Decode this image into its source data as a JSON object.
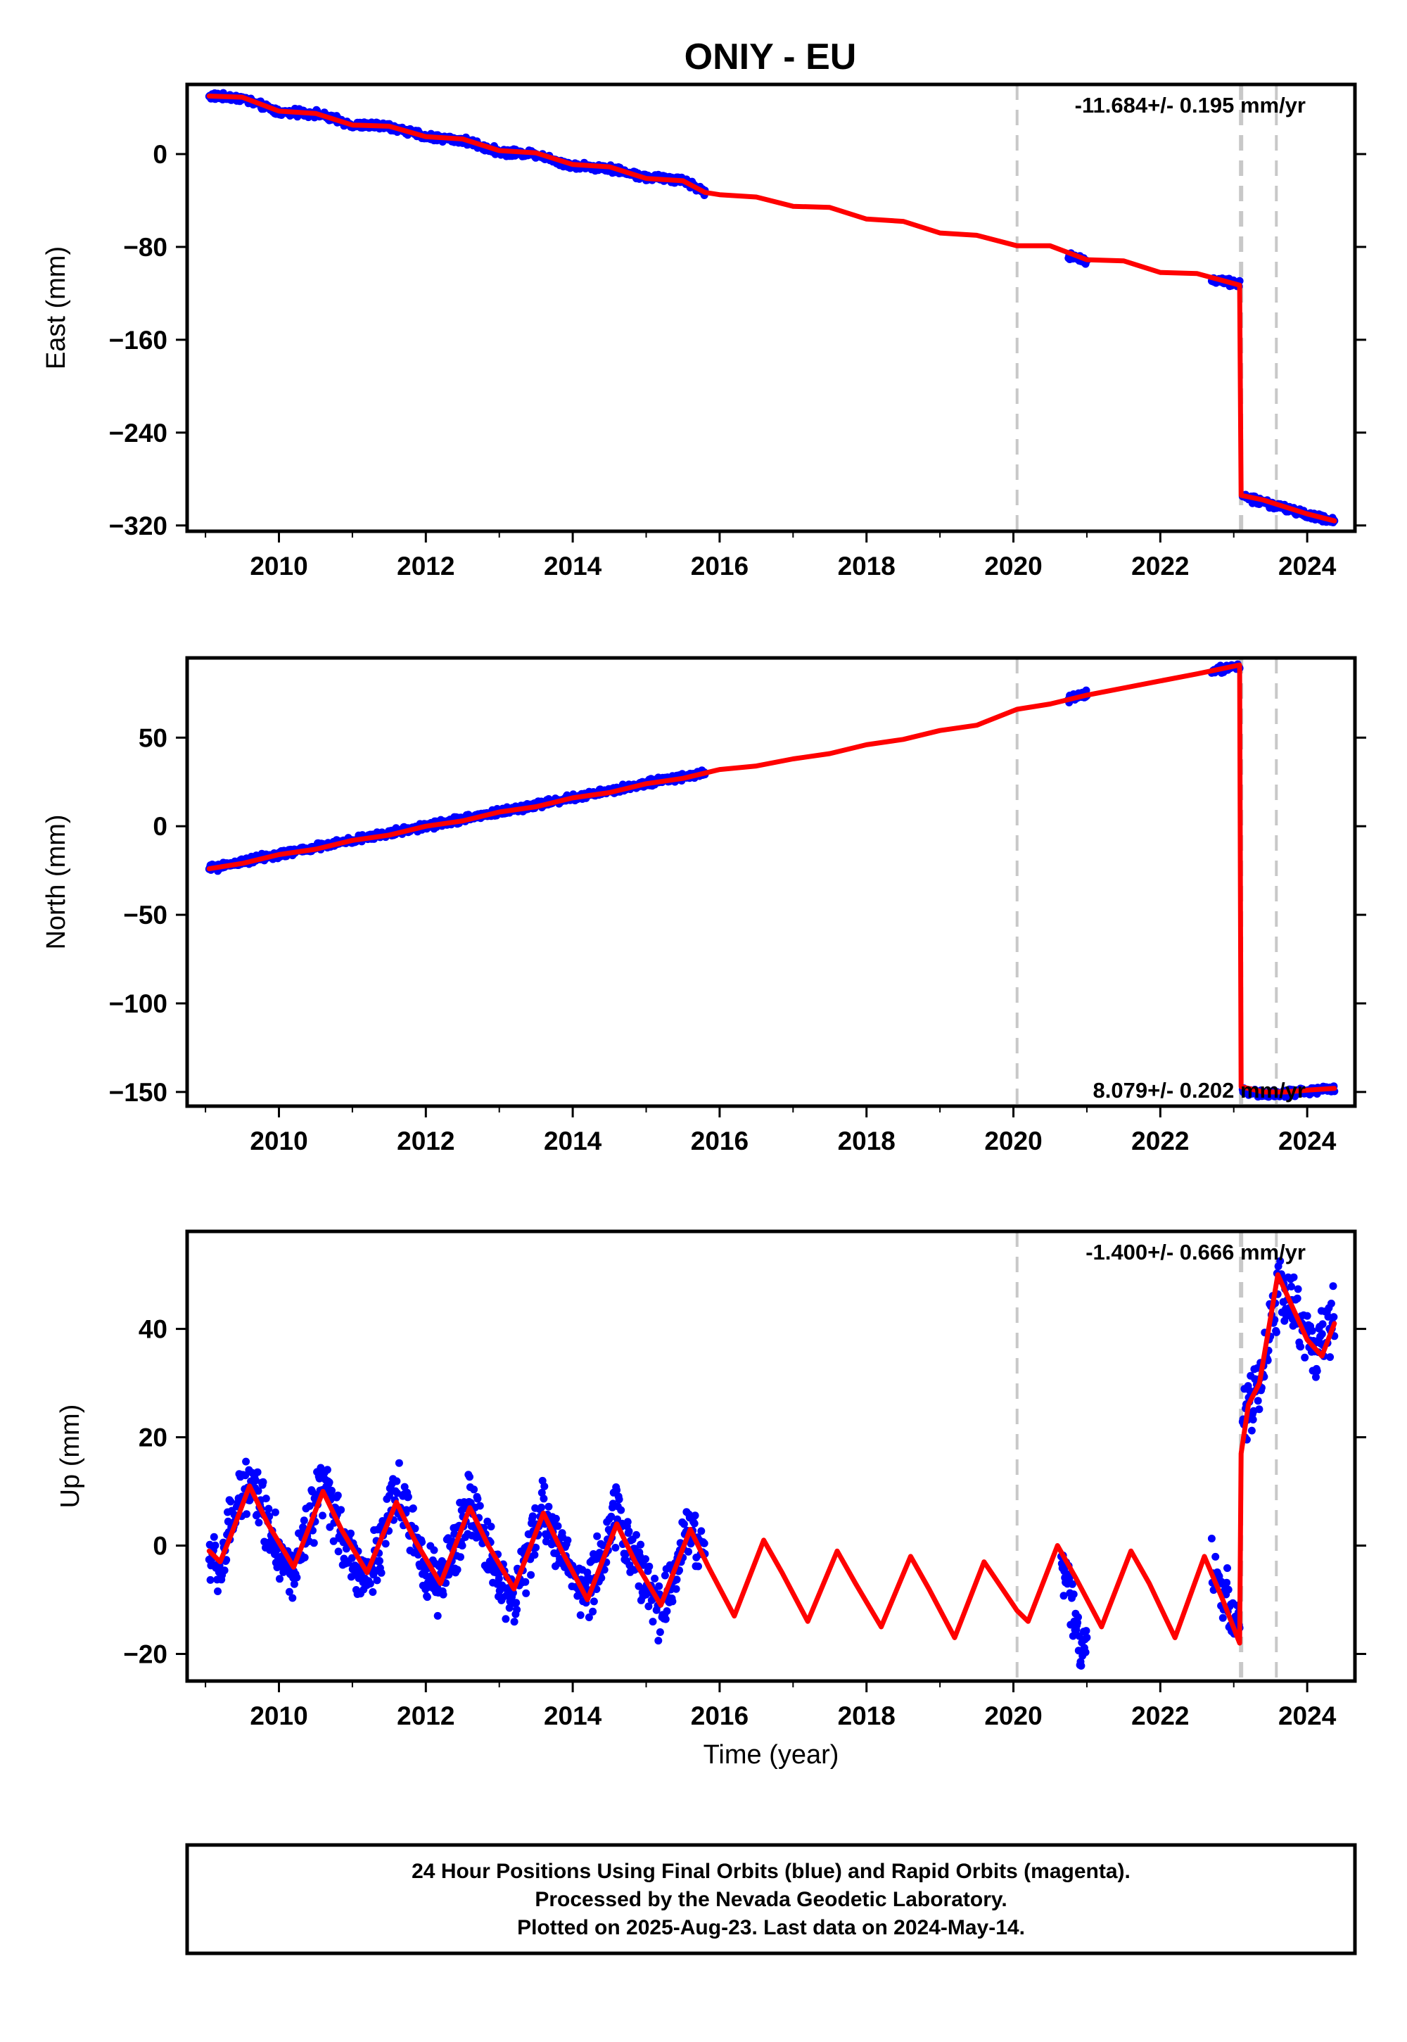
{
  "title": "ONIY - EU",
  "colors": {
    "observations": "#0000ff",
    "model": "#ff0000",
    "event_lines": "#c8c8c8",
    "frame": "#000000"
  },
  "footer": {
    "line1": "24 Hour Positions Using Final Orbits (blue) and Rapid Orbits (magenta).",
    "line2": "Processed by the Nevada Geodetic Laboratory.",
    "line3": "Plotted on 2025-Aug-23. Last data on 2024-May-14."
  },
  "chart_data": [
    {
      "type": "scatter",
      "component": "East",
      "ylabel": "East (mm)",
      "xlabel": "",
      "rate_label": "-11.684+/- 0.195 mm/yr",
      "xlim": [
        2008.75,
        2024.65
      ],
      "ylim": [
        -325,
        60
      ],
      "xticks": [
        2010,
        2012,
        2014,
        2016,
        2018,
        2020,
        2022,
        2024
      ],
      "yticks": [
        0,
        -80,
        -160,
        -240,
        -320
      ],
      "event_lines": [
        2020.05,
        2023.1,
        2023.58
      ],
      "series": [
        {
          "kind": "observations",
          "segments": [
            {
              "x": [
                2009.05,
                2009.5,
                2010.0,
                2010.5,
                2011.0,
                2011.5,
                2012.0,
                2012.5,
                2013.0,
                2013.5,
                2014.0,
                2014.5,
                2015.0,
                2015.5,
                2015.8
              ],
              "y": [
                50,
                48,
                36,
                35,
                25,
                24,
                15,
                12,
                2,
                0,
                -10,
                -12,
                -20,
                -22,
                -33
              ]
            },
            {
              "x": [
                2020.75,
                2020.9,
                2021.0
              ],
              "y": [
                -88,
                -90,
                -92
              ]
            },
            {
              "x": [
                2022.7,
                2022.9,
                2023.08
              ],
              "y": [
                -108,
                -110,
                -112
              ]
            },
            {
              "x": [
                2023.12,
                2023.4,
                2023.7,
                2024.0,
                2024.3,
                2024.37
              ],
              "y": [
                -295,
                -300,
                -305,
                -311,
                -315,
                -316
              ]
            }
          ]
        },
        {
          "kind": "model",
          "x": [
            2009.05,
            2009.5,
            2010.0,
            2010.5,
            2011.0,
            2011.5,
            2012.0,
            2012.5,
            2013.0,
            2013.5,
            2014.0,
            2014.5,
            2015.0,
            2015.5,
            2015.8,
            2016.0,
            2016.5,
            2017.0,
            2017.5,
            2018.0,
            2018.5,
            2019.0,
            2019.5,
            2020.05,
            2020.5,
            2021.0,
            2021.5,
            2022.0,
            2022.5,
            2023.08,
            2023.1,
            2023.4,
            2023.7,
            2024.0,
            2024.37
          ],
          "y": [
            50,
            49,
            37,
            35,
            25,
            24,
            15,
            13,
            3,
            1,
            -9,
            -11,
            -21,
            -23,
            -33,
            -35,
            -37,
            -45,
            -46,
            -56,
            -58,
            -68,
            -70,
            -79,
            -79,
            -91,
            -92,
            -102,
            -103,
            -113,
            -294,
            -298,
            -304,
            -310,
            -316
          ]
        }
      ]
    },
    {
      "type": "scatter",
      "component": "North",
      "ylabel": "North (mm)",
      "xlabel": "",
      "rate_label": "8.079+/- 0.202 mm/yr",
      "xlim": [
        2008.75,
        2024.65
      ],
      "ylim": [
        -158,
        95
      ],
      "xticks": [
        2010,
        2012,
        2014,
        2016,
        2018,
        2020,
        2022,
        2024
      ],
      "yticks": [
        50,
        0,
        -50,
        -100,
        -150
      ],
      "event_lines": [
        2020.05,
        2023.1,
        2023.58
      ],
      "series": [
        {
          "kind": "observations",
          "segments": [
            {
              "x": [
                2009.05,
                2009.5,
                2010.0,
                2010.5,
                2011.0,
                2011.5,
                2012.0,
                2012.5,
                2013.0,
                2013.5,
                2014.0,
                2014.5,
                2015.0,
                2015.5,
                2015.8
              ],
              "y": [
                -24,
                -20,
                -16,
                -12,
                -8,
                -4,
                0,
                4,
                8,
                12,
                16,
                20,
                24,
                28,
                30
              ]
            },
            {
              "x": [
                2020.75,
                2020.9,
                2021.0
              ],
              "y": [
                72,
                74,
                75
              ]
            },
            {
              "x": [
                2022.7,
                2022.9,
                2023.08
              ],
              "y": [
                88,
                89,
                90
              ]
            },
            {
              "x": [
                2023.12,
                2023.4,
                2023.7,
                2024.0,
                2024.3,
                2024.37
              ],
              "y": [
                -150,
                -151,
                -151,
                -150,
                -148,
                -148
              ]
            }
          ]
        },
        {
          "kind": "model",
          "x": [
            2009.05,
            2009.5,
            2010.0,
            2010.5,
            2011.0,
            2011.5,
            2012.0,
            2012.5,
            2013.0,
            2013.5,
            2014.0,
            2014.5,
            2015.0,
            2015.5,
            2015.8,
            2016.0,
            2016.5,
            2017.0,
            2017.5,
            2018.0,
            2018.5,
            2019.0,
            2019.5,
            2020.05,
            2020.5,
            2021.0,
            2021.5,
            2022.0,
            2022.5,
            2023.08,
            2023.1,
            2023.4,
            2023.7,
            2024.0,
            2024.37
          ],
          "y": [
            -24,
            -21,
            -16,
            -13,
            -8,
            -5,
            0,
            3,
            8,
            11,
            16,
            19,
            24,
            27,
            30,
            32,
            34,
            38,
            41,
            46,
            49,
            54,
            57,
            66,
            69,
            74,
            78,
            82,
            86,
            91,
            -147,
            -150,
            -150,
            -149,
            -148
          ]
        }
      ]
    },
    {
      "type": "scatter",
      "component": "Up",
      "ylabel": "Up (mm)",
      "xlabel": "Time (year)",
      "rate_label": "-1.400+/- 0.666 mm/yr",
      "xlim": [
        2008.75,
        2024.65
      ],
      "ylim": [
        -25,
        58
      ],
      "xticks": [
        2010,
        2012,
        2014,
        2016,
        2018,
        2020,
        2022,
        2024
      ],
      "yticks": [
        40,
        20,
        0,
        -20
      ],
      "event_lines": [
        2020.05,
        2023.1,
        2023.58
      ],
      "series": [
        {
          "kind": "observations",
          "segments": [
            {
              "x": [
                2009.05,
                2009.2,
                2009.35,
                2009.6,
                2009.75,
                2010.05,
                2010.2,
                2010.6,
                2010.75,
                2011.05,
                2011.2,
                2011.6,
                2011.75,
                2012.05,
                2012.2,
                2012.6,
                2012.75,
                2013.05,
                2013.2,
                2013.6,
                2013.75,
                2014.05,
                2014.2,
                2014.6,
                2014.75,
                2015.05,
                2015.2,
                2015.6,
                2015.8
              ],
              "y": [
                -2,
                -5,
                4,
                13,
                8,
                -3,
                -6,
                11,
                6,
                -4,
                -7,
                10,
                5,
                -5,
                -8,
                8,
                3,
                -7,
                -10,
                7,
                2,
                -6,
                -9,
                6,
                1,
                -8,
                -12,
                4,
                -1
              ]
            },
            {
              "x": [
                2020.65,
                2020.75,
                2020.85,
                2020.95,
                2021.0
              ],
              "y": [
                -3,
                -8,
                -14,
                -18,
                -17
              ]
            },
            {
              "x": [
                2022.7,
                2022.85,
                2022.95,
                2023.05,
                2023.08
              ],
              "y": [
                -4,
                -8,
                -11,
                -14,
                -16
              ]
            },
            {
              "x": [
                2023.12,
                2023.25,
                2023.4,
                2023.55,
                2023.65,
                2023.8,
                2023.95,
                2024.1,
                2024.25,
                2024.37
              ],
              "y": [
                22,
                27,
                32,
                44,
                48,
                44,
                40,
                36,
                38,
                42
              ]
            }
          ]
        },
        {
          "kind": "model",
          "x": [
            2009.05,
            2009.2,
            2009.35,
            2009.6,
            2009.85,
            2010.2,
            2010.6,
            2010.85,
            2011.2,
            2011.6,
            2011.85,
            2012.2,
            2012.6,
            2012.85,
            2013.2,
            2013.6,
            2013.85,
            2014.2,
            2014.6,
            2014.85,
            2015.2,
            2015.6,
            2015.85,
            2016.2,
            2016.6,
            2016.85,
            2017.2,
            2017.6,
            2017.85,
            2018.2,
            2018.6,
            2018.85,
            2019.2,
            2019.6,
            2020.0,
            2020.05,
            2020.2,
            2020.6,
            2020.85,
            2021.2,
            2021.6,
            2021.85,
            2022.2,
            2022.6,
            2022.85,
            2023.08,
            2023.1,
            2023.2,
            2023.35,
            2023.6,
            2023.8,
            2024.0,
            2024.2,
            2024.37
          ],
          "y": [
            -1,
            -3,
            2,
            11,
            4,
            -4,
            10,
            3,
            -5,
            8,
            1,
            -7,
            7,
            0,
            -8,
            6,
            -1,
            -10,
            4,
            -3,
            -11,
            3,
            -4,
            -13,
            1,
            -5,
            -14,
            -1,
            -7,
            -15,
            -2,
            -8,
            -17,
            -3,
            -11,
            -12,
            -14,
            0,
            -6,
            -15,
            -1,
            -7,
            -17,
            -2,
            -10,
            -18,
            17,
            26,
            30,
            50,
            44,
            38,
            35,
            41
          ]
        }
      ]
    }
  ]
}
